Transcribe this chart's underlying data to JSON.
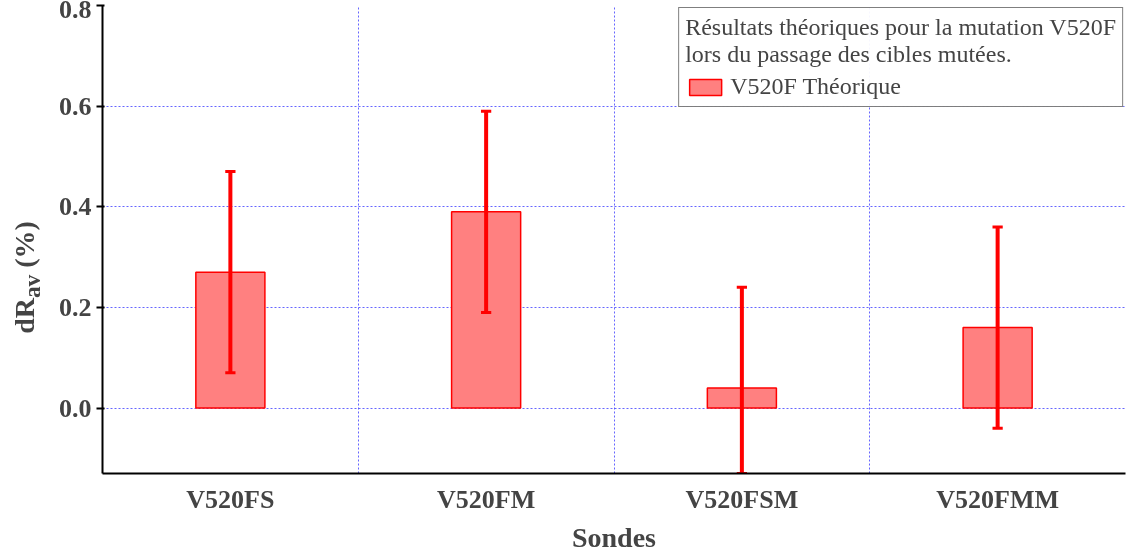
{
  "chart_data": {
    "type": "bar",
    "xlabel": "Sondes",
    "ylabel": "dR$_{av}$ (%)",
    "legend_title": "Résultats théoriques pour la mutation V520F\nlors du passage des cibles mutées.",
    "categories": [
      "V520FS",
      "V520FM",
      "V520FSM",
      "V520FMM"
    ],
    "series": [
      {
        "name": "V520F Théorique",
        "color": "#ff8080",
        "values": [
          0.27,
          0.39,
          0.04,
          0.16
        ],
        "errors": [
          0.2,
          0.2,
          [
            -0.13,
            0.24
          ],
          0.2
        ]
      }
    ],
    "ylim": [
      -0.13,
      0.8
    ],
    "yticks": [
      {
        "value": 0.0,
        "label": "0.0"
      },
      {
        "value": 0.2,
        "label": "0.2"
      },
      {
        "value": 0.4,
        "label": "0.4"
      },
      {
        "value": 0.6,
        "label": "0.6"
      },
      {
        "value": 0.8,
        "label": "0.8"
      }
    ],
    "grid": true,
    "legend": "top right"
  }
}
